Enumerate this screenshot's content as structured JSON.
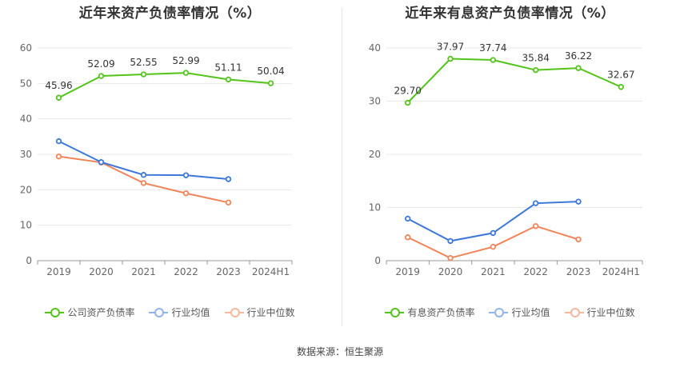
{
  "chart_data": [
    {
      "type": "line",
      "title": "近年来资产负债率情况（%）",
      "categories": [
        "2019",
        "2020",
        "2021",
        "2022",
        "2023",
        "2024H1"
      ],
      "ylim": [
        0,
        60
      ],
      "yticks": [
        "0",
        "10",
        "20",
        "30",
        "40",
        "50",
        "60"
      ],
      "grid": true,
      "legend_position": "bottom",
      "series": [
        {
          "name": "公司资产负债率",
          "color": "#52c41a",
          "values": [
            45.96,
            52.09,
            52.55,
            52.99,
            51.11,
            50.04
          ],
          "labels": [
            "45.96",
            "52.09",
            "52.55",
            "52.99",
            "51.11",
            "50.04"
          ]
        },
        {
          "name": "行业均值",
          "color": "#3c78d8",
          "values": [
            33.7,
            27.8,
            24.2,
            24.1,
            23.0,
            null
          ]
        },
        {
          "name": "行业中位数",
          "color": "#f08458",
          "values": [
            29.4,
            27.7,
            21.9,
            19.0,
            16.4,
            null
          ]
        }
      ]
    },
    {
      "type": "line",
      "title": "近年来有息资产负债率情况（%）",
      "categories": [
        "2019",
        "2020",
        "2021",
        "2022",
        "2023",
        "2024H1"
      ],
      "ylim": [
        0,
        40
      ],
      "yticks": [
        "0",
        "10",
        "20",
        "30",
        "40"
      ],
      "grid": true,
      "legend_position": "bottom",
      "series": [
        {
          "name": "有息资产负债率",
          "color": "#52c41a",
          "values": [
            29.7,
            37.97,
            37.74,
            35.84,
            36.22,
            32.67
          ],
          "labels": [
            "29.70",
            "37.97",
            "37.74",
            "35.84",
            "36.22",
            "32.67"
          ]
        },
        {
          "name": "行业均值",
          "color": "#3c78d8",
          "values": [
            7.9,
            3.7,
            5.2,
            10.8,
            11.1,
            null
          ]
        },
        {
          "name": "行业中位数",
          "color": "#f08458",
          "values": [
            4.4,
            0.5,
            2.6,
            6.5,
            4.0,
            null
          ]
        }
      ]
    }
  ],
  "legend_colors": {
    "main": "#52c41a",
    "avg": "#8fb4f0",
    "median": "#f5b89c"
  },
  "footer": {
    "source": "数据来源：恒生聚源"
  }
}
